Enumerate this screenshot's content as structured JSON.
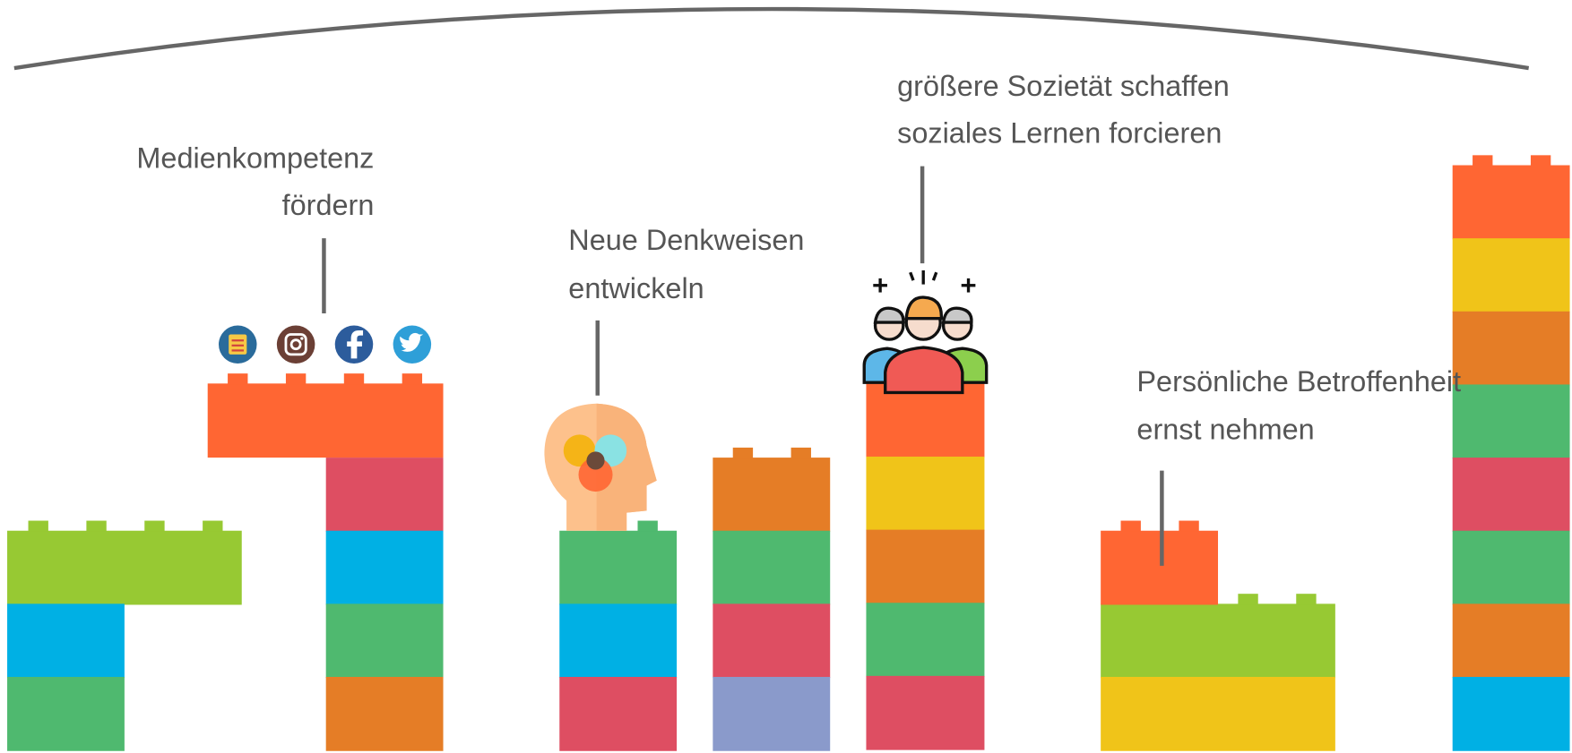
{
  "labels": [
    {
      "lines": [
        "Medienkompetenz",
        "fördern"
      ]
    },
    {
      "lines": [
        "Neue Denkweisen",
        "entwickeln"
      ]
    },
    {
      "lines": [
        "größere Sozietät schaffen",
        "soziales Lernen forcieren"
      ]
    },
    {
      "lines": [
        "Persönliche Betroffenheit",
        "ernst nehmen"
      ]
    }
  ]
}
